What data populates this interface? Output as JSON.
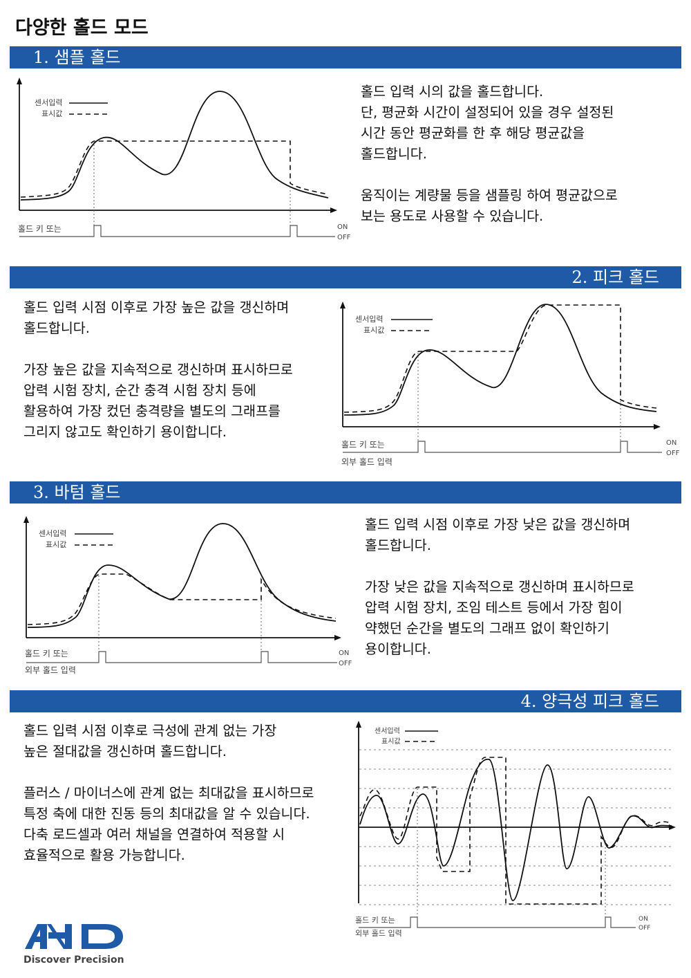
{
  "page_title": "다양한 홀드 모드",
  "brand": {
    "name": "A&D",
    "tagline": "Discover Precision",
    "color": "#1f5aa6"
  },
  "sections": [
    {
      "heading": "1. 샘플 홀드",
      "paragraphs": [
        [
          "홀드 입력 시의 값을 홀드합니다.",
          "단, 평균화 시간이 설정되어 있을 경우 설정된",
          "시간 동안 평균화를 한 후 해당 평균값을",
          "홀드합니다."
        ],
        [
          "움직이는 계량물 등을 샘플링 하여 평균값으로",
          "보는 용도로 사용할 수 있습니다."
        ]
      ],
      "legend": {
        "sensor": "센서입력",
        "display": "표시값"
      },
      "trigger": [
        "홀드 키 또는"
      ],
      "on": "ON",
      "off": "OFF"
    },
    {
      "heading": "2. 피크 홀드",
      "paragraphs": [
        [
          "홀드 입력 시점 이후로 가장 높은 값을 갱신하며",
          "홀드합니다."
        ],
        [
          "가장 높은 값을 지속적으로 갱신하며 표시하므로",
          "압력 시험 장치, 순간 충격 시험 장치 등에",
          "활용하여 가장 컸던 충격량을 별도의 그래프를",
          "그리지 않고도 확인하기 용이합니다."
        ]
      ],
      "legend": {
        "sensor": "센서입력",
        "display": "표시값"
      },
      "trigger": [
        "홀드 키 또는",
        "외부 홀드 입력"
      ],
      "on": "ON",
      "off": "OFF"
    },
    {
      "heading": "3. 바텀 홀드",
      "paragraphs": [
        [
          "홀드 입력 시점 이후로 가장 낮은 값을 갱신하며",
          "홀드합니다."
        ],
        [
          "가장 낮은 값을 지속적으로 갱신하며 표시하므로",
          "압력 시험 장치, 조임 테스트 등에서 가장 힘이",
          "약했던 순간을 별도의 그래프 없이 확인하기",
          "용이합니다."
        ]
      ],
      "legend": {
        "sensor": "센서입력",
        "display": "표시값"
      },
      "trigger": [
        "홀드 키 또는",
        "외부 홀드 입력"
      ],
      "on": "ON",
      "off": "OFF"
    },
    {
      "heading": "4. 양극성 피크 홀드",
      "paragraphs": [
        [
          "홀드 입력 시점 이후로 극성에 관계 없는 가장",
          "높은 절대값을 갱신하며 홀드합니다."
        ],
        [
          "플러스 / 마이너스에 관계 없는 최대값을 표시하므로",
          "특정 축에 대한 진동 등의 최대값을 알 수 있습니다.",
          "다축 로드셀과 여러 채널을 연결하여 적용할 시",
          "효율적으로 활용 가능합니다."
        ]
      ],
      "legend": {
        "sensor": "센서입력",
        "display": "표시값"
      },
      "trigger": [
        "홀드 키 또는",
        "외부 홀드 입력"
      ],
      "on": "ON",
      "off": "OFF"
    }
  ]
}
